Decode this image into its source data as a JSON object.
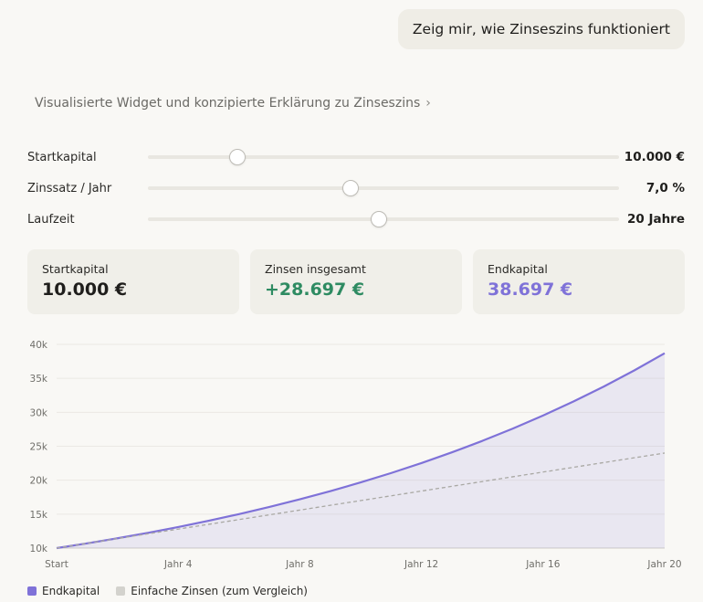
{
  "chat": {
    "user_message": "Zeig mir, wie Zinseszins funktioniert",
    "widget_link": "Visualisierte Widget und konzipierte Erklärung zu Zinseszins",
    "widget_link_icon": "chevron-right-icon"
  },
  "sliders": [
    {
      "label": "Startkapital",
      "value_text": "10.000 €",
      "position": 0.19
    },
    {
      "label": "Zinssatz / Jahr",
      "value_text": "7,0 %",
      "position": 0.43
    },
    {
      "label": "Laufzeit",
      "value_text": "20 Jahre",
      "position": 0.49
    }
  ],
  "cards": [
    {
      "label": "Startkapital",
      "value": "10.000 €",
      "color": "#1f1e1c"
    },
    {
      "label": "Zinsen insgesamt",
      "value": "+28.697 €",
      "color": "#2e8b62"
    },
    {
      "label": "Endkapital",
      "value": "38.697 €",
      "color": "#7f72d8"
    }
  ],
  "chart_data": {
    "type": "area",
    "x": [
      0,
      4,
      8,
      12,
      16,
      20
    ],
    "x_tick_labels": [
      "Start",
      "Jahr 4",
      "Jahr 8",
      "Jahr 12",
      "Jahr 16",
      "Jahr 20"
    ],
    "y_tick_labels": [
      "10k",
      "15k",
      "20k",
      "25k",
      "30k",
      "35k",
      "40k"
    ],
    "ylim": [
      10000,
      40000
    ],
    "xlim": [
      0,
      20
    ],
    "grid": true,
    "series": [
      {
        "name": "Endkapital",
        "style": "solid-area",
        "color": "#7f72d8",
        "x": [
          0,
          1,
          2,
          3,
          4,
          5,
          6,
          7,
          8,
          9,
          10,
          11,
          12,
          13,
          14,
          15,
          16,
          17,
          18,
          19,
          20
        ],
        "values": [
          10000,
          10700,
          11449,
          12250,
          13108,
          14026,
          15007,
          16058,
          17182,
          18385,
          19672,
          21049,
          22522,
          24098,
          25785,
          27590,
          29522,
          31588,
          33799,
          36165,
          38697
        ]
      },
      {
        "name": "Einfache Zinsen (zum Vergleich)",
        "style": "dashed",
        "color": "#a9a8a3",
        "x": [
          0,
          20
        ],
        "values": [
          10000,
          24000
        ]
      }
    ],
    "legend_position": "bottom-left"
  },
  "legend": [
    {
      "label": "Endkapital",
      "color": "#7f72d8"
    },
    {
      "label": "Einfache Zinsen (zum Vergleich)",
      "color": "#d3d2cd"
    }
  ]
}
